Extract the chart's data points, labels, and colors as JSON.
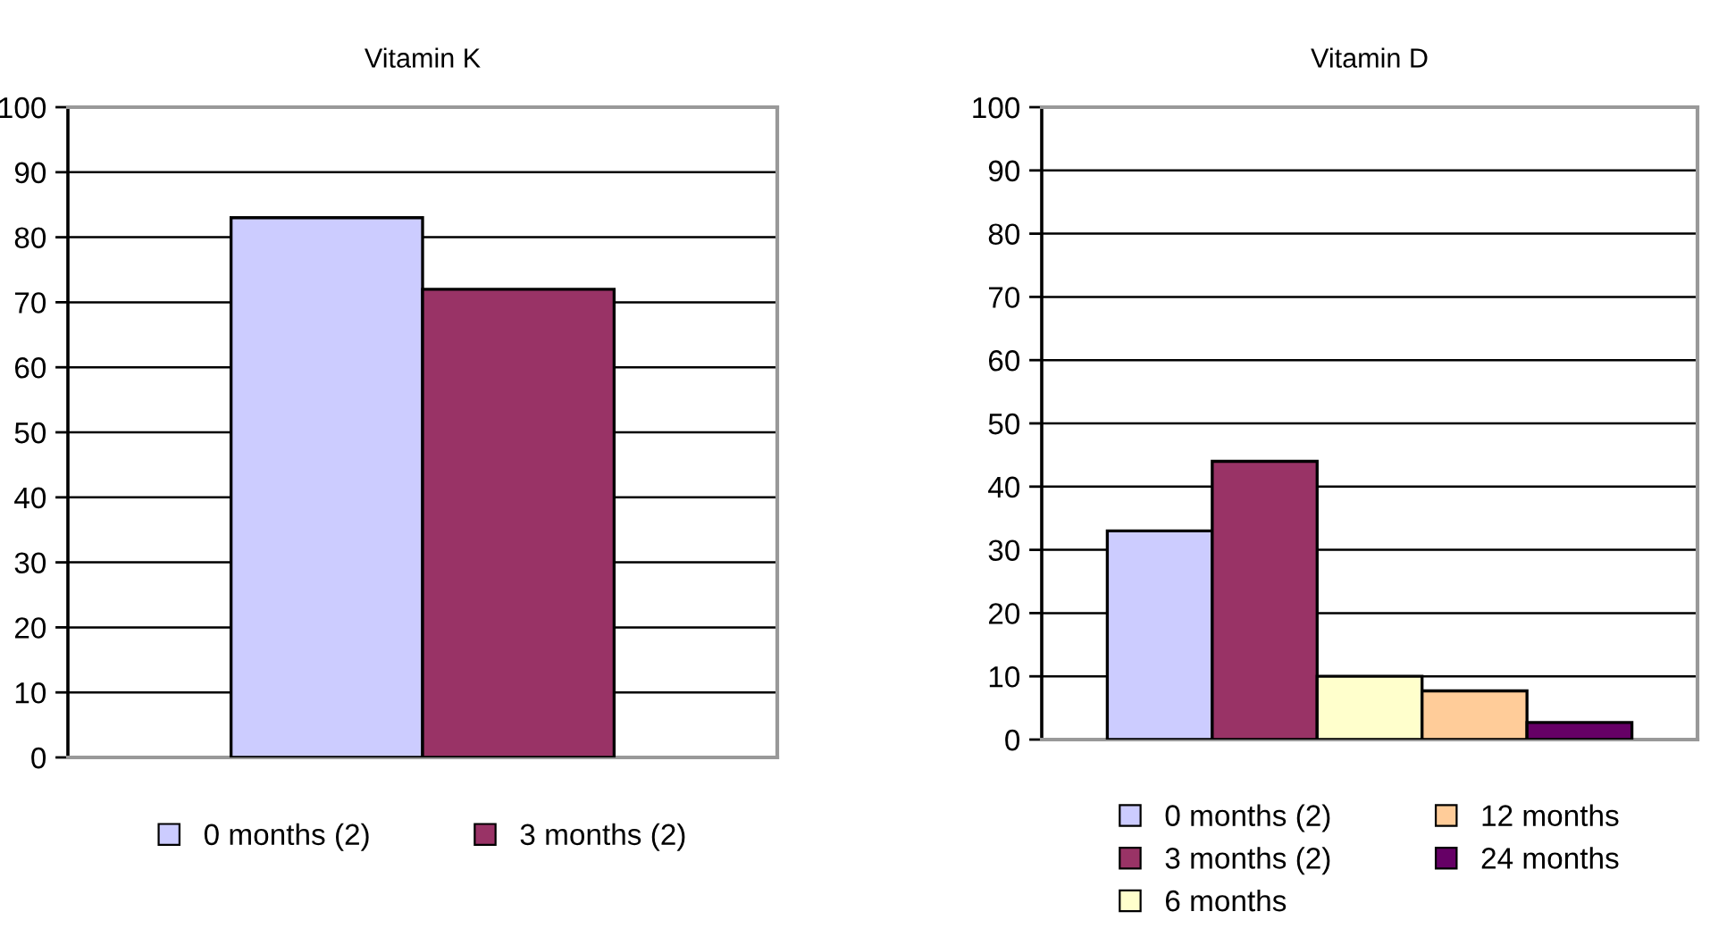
{
  "chart_data": [
    {
      "type": "bar",
      "title": "Vitamin K",
      "categories": [
        null
      ],
      "series": [
        {
          "name": "0 months (2)",
          "color": "#ccccff",
          "values": [
            83
          ]
        },
        {
          "name": "3 months (2)",
          "color": "#993366",
          "values": [
            72
          ]
        }
      ],
      "ylim": [
        0,
        100
      ],
      "yticks": [
        0,
        10,
        20,
        30,
        40,
        50,
        60,
        70,
        80,
        90,
        100
      ],
      "grid": "y",
      "legend": "bottom"
    },
    {
      "type": "bar",
      "title": "Vitamin D",
      "categories": [
        null
      ],
      "series": [
        {
          "name": "0 months (2)",
          "color": "#ccccff",
          "values": [
            33
          ]
        },
        {
          "name": "3 months (2)",
          "color": "#993366",
          "values": [
            44
          ]
        },
        {
          "name": "6 months",
          "color": "#ffffcc",
          "values": [
            10
          ]
        },
        {
          "name": "12 months",
          "color": "#ffcc99",
          "values": [
            7.7
          ]
        },
        {
          "name": "24 months",
          "color": "#660066",
          "values": [
            2.7
          ]
        }
      ],
      "ylim": [
        0,
        100
      ],
      "yticks": [
        0,
        10,
        20,
        30,
        40,
        50,
        60,
        70,
        80,
        90,
        100
      ],
      "grid": "y",
      "legend": "bottom"
    }
  ]
}
